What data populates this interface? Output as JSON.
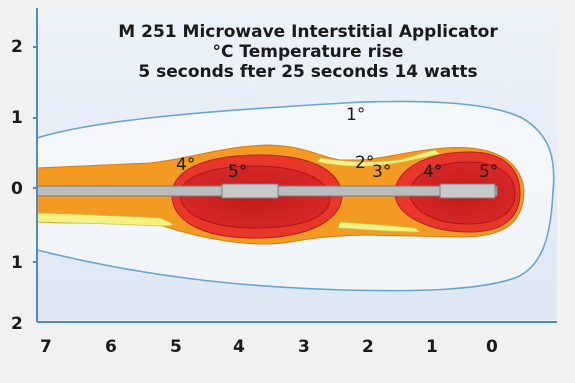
{
  "chart_data": {
    "type": "contour",
    "title": "M 251 Microwave Interstitial Applicator",
    "subtitle_lines": [
      "°C Temperature rise",
      "5 seconds fter 25 seconds 14 watts"
    ],
    "x_ticks": [
      "7",
      "6",
      "5",
      "4",
      "3",
      "2",
      "1",
      "0"
    ],
    "y_ticks": [
      "2",
      "1",
      "0",
      "1",
      "2"
    ],
    "xlim": [
      7.3,
      -0.9
    ],
    "ylim": [
      -2,
      2
    ],
    "isotherm_labels": [
      {
        "text": "1°",
        "x": 2.0,
        "y": 1.1
      },
      {
        "text": "2°",
        "x": 2.0,
        "y": 0.4
      },
      {
        "text": "3°",
        "x": 1.8,
        "y": 0.3
      },
      {
        "text": "4°",
        "x": 4.9,
        "y": 0.4
      },
      {
        "text": "5°",
        "x": 4.0,
        "y": 0.3
      },
      {
        "text": "4°",
        "x": 0.9,
        "y": 0.3
      },
      {
        "text": "5°",
        "x": 0.1,
        "y": 0.3
      }
    ],
    "colors": {
      "background": "#e7eef8",
      "contour_1": "#6ba4cf",
      "level_1": "#ffffff",
      "level_2": "#f4f082",
      "level_3": "#f29a22",
      "level_4": "#e8372a",
      "level_5": "#cc1f1f",
      "probe": "#bcbcbc"
    }
  }
}
